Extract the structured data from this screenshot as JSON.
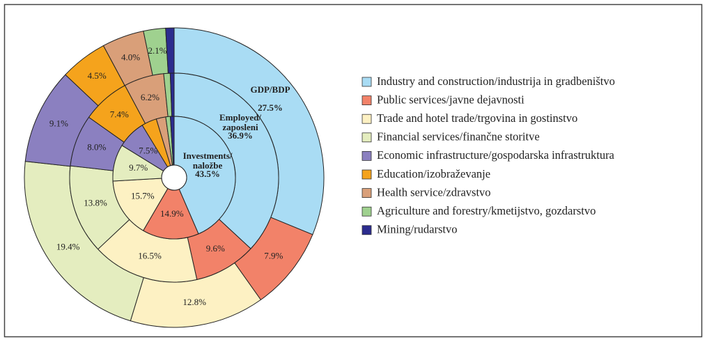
{
  "chart_data": {
    "type": "pie",
    "categories": [
      "Industry and construction/industrija in gradbeništvo",
      "Public services/javne dejavnosti",
      "Trade and hotel trade/trgovina in gostinstvo",
      "Financial services/finančne storitve",
      "Economic infrastructure/gospodarska infrastruktura",
      "Education/izobraževanje",
      "Health service/zdravstvo",
      "Agriculture and forestry/kmetijstvo, gozdarstvo",
      "Mining/rudarstvo"
    ],
    "colors": [
      "#a9dcf4",
      "#f28269",
      "#fdf1c3",
      "#e4edbf",
      "#8b80c0",
      "#f5a31c",
      "#d99f79",
      "#9fd18f",
      "#2c2c8e"
    ],
    "series": [
      {
        "name": "GDP/BDP",
        "values": [
          27.5,
          7.9,
          12.8,
          19.4,
          9.1,
          4.5,
          4.0,
          2.1,
          0.8
        ],
        "value_labels": [
          "27.5%",
          "7.9%",
          "12.8%",
          "19.4%",
          "9.1%",
          "4.5%",
          "4.0%",
          "2.1%",
          null
        ]
      },
      {
        "name": "Employed/\nzaposleni",
        "values": [
          36.9,
          9.6,
          16.5,
          13.8,
          8.0,
          7.4,
          6.2,
          1.0,
          0.6
        ],
        "value_labels": [
          "36.9%",
          "9.6%",
          "16.5%",
          "13.8%",
          "8.0%",
          "7.4%",
          "6.2%",
          null,
          null
        ]
      },
      {
        "name": "Investments/\nnaložbe",
        "values": [
          43.5,
          14.9,
          15.7,
          9.7,
          7.5,
          4.0,
          2.5,
          1.2,
          1.0
        ],
        "value_labels": [
          "43.5%",
          "14.9%",
          "15.7%",
          "9.7%",
          "7.5%",
          null,
          null,
          null,
          null
        ]
      }
    ]
  }
}
